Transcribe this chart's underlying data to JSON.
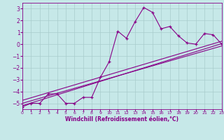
{
  "xlabel": "Windchill (Refroidissement éolien,°C)",
  "xlim": [
    0,
    23
  ],
  "ylim": [
    -5.5,
    3.5
  ],
  "xticks": [
    0,
    1,
    2,
    3,
    4,
    5,
    6,
    7,
    8,
    9,
    10,
    11,
    12,
    13,
    14,
    15,
    16,
    17,
    18,
    19,
    20,
    21,
    22,
    23
  ],
  "yticks": [
    -5,
    -4,
    -3,
    -2,
    -1,
    0,
    1,
    2,
    3
  ],
  "background_color": "#c6e8e8",
  "grid_color": "#a8cccc",
  "line_color": "#880088",
  "line1_x": [
    0,
    1,
    2,
    3,
    4,
    5,
    6,
    7,
    8,
    9,
    10,
    11,
    12,
    13,
    14,
    15,
    16,
    17,
    18,
    19,
    20,
    21,
    22,
    23
  ],
  "line1_y": [
    -5.3,
    -5.0,
    -5.0,
    -4.2,
    -4.2,
    -5.0,
    -5.0,
    -4.5,
    -4.5,
    -2.8,
    -1.5,
    1.1,
    0.5,
    1.9,
    3.1,
    2.7,
    1.3,
    1.5,
    0.7,
    0.1,
    0.0,
    0.9,
    0.8,
    0.0
  ],
  "line2_x": [
    0,
    23
  ],
  "line2_y": [
    -5.2,
    0.05
  ],
  "line3_x": [
    0,
    23
  ],
  "line3_y": [
    -5.0,
    -0.15
  ],
  "line4_x": [
    0,
    23
  ],
  "line4_y": [
    -4.75,
    0.25
  ]
}
